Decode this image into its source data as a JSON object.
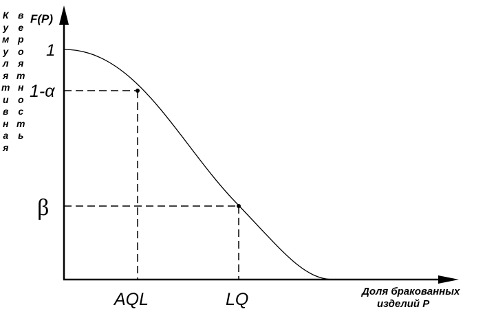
{
  "y_axis": {
    "function_label": "F(P)",
    "label_word1": "Кумулятивная",
    "label_word2": "вероятность",
    "tick_one": "1",
    "tick_one_minus_alpha": "1-α",
    "tick_beta": "β"
  },
  "x_axis": {
    "label_line1": "Доля бракованных",
    "label_line2": "изделий P",
    "tick_aql": "AQL",
    "tick_lq": "LQ"
  },
  "curve": {
    "description_type": "operating characteristic curve",
    "y_at_p0": 1,
    "reaches_zero": true
  },
  "colors": {
    "line": "#000000",
    "background": "#ffffff"
  }
}
